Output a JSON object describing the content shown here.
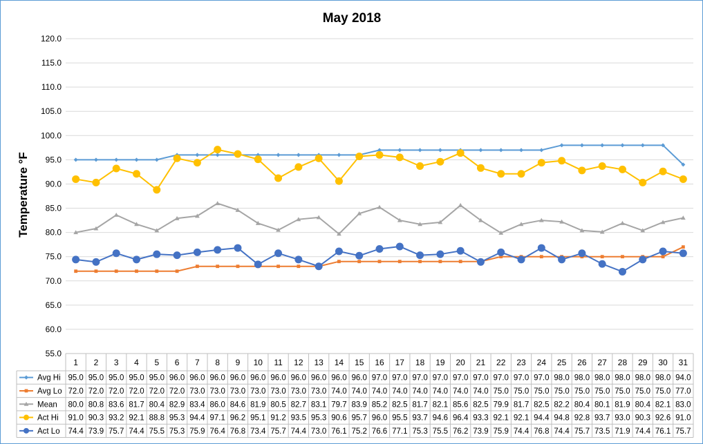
{
  "chart_data": {
    "type": "line",
    "title": "May 2018",
    "ylabel": "Temperature °F",
    "ylim": [
      55.0,
      120.0
    ],
    "ytick_step": 5,
    "grid": true,
    "legend_placement": "data table rows below the plot",
    "categories": [
      "1",
      "2",
      "3",
      "4",
      "5",
      "6",
      "7",
      "8",
      "9",
      "10",
      "11",
      "12",
      "13",
      "14",
      "15",
      "16",
      "17",
      "18",
      "19",
      "20",
      "21",
      "22",
      "23",
      "24",
      "25",
      "26",
      "27",
      "28",
      "29",
      "30",
      "31"
    ],
    "series": [
      {
        "name": "Avg Hi",
        "color": "#5b9bd5",
        "marker": "diamond",
        "values": [
          95.0,
          95.0,
          95.0,
          95.0,
          95.0,
          96.0,
          96.0,
          96.0,
          96.0,
          96.0,
          96.0,
          96.0,
          96.0,
          96.0,
          96.0,
          97.0,
          97.0,
          97.0,
          97.0,
          97.0,
          97.0,
          97.0,
          97.0,
          97.0,
          98.0,
          98.0,
          98.0,
          98.0,
          98.0,
          98.0,
          94.0
        ]
      },
      {
        "name": "Avg Lo",
        "color": "#ed7d31",
        "marker": "square",
        "values": [
          72.0,
          72.0,
          72.0,
          72.0,
          72.0,
          72.0,
          73.0,
          73.0,
          73.0,
          73.0,
          73.0,
          73.0,
          73.0,
          74.0,
          74.0,
          74.0,
          74.0,
          74.0,
          74.0,
          74.0,
          74.0,
          75.0,
          75.0,
          75.0,
          75.0,
          75.0,
          75.0,
          75.0,
          75.0,
          75.0,
          77.0
        ]
      },
      {
        "name": "Mean",
        "color": "#a5a5a5",
        "marker": "triangle",
        "values": [
          80.0,
          80.8,
          83.6,
          81.7,
          80.4,
          82.9,
          83.4,
          86.0,
          84.6,
          81.9,
          80.5,
          82.7,
          83.1,
          79.7,
          83.9,
          85.2,
          82.5,
          81.7,
          82.1,
          85.6,
          82.5,
          79.9,
          81.7,
          82.5,
          82.2,
          80.4,
          80.1,
          81.9,
          80.4,
          82.1,
          83.0
        ]
      },
      {
        "name": "Act Hi",
        "color": "#ffc000",
        "marker": "circle",
        "values": [
          91.0,
          90.3,
          93.2,
          92.1,
          88.8,
          95.3,
          94.4,
          97.1,
          96.2,
          95.1,
          91.2,
          93.5,
          95.3,
          90.6,
          95.7,
          96.0,
          95.5,
          93.7,
          94.6,
          96.4,
          93.3,
          92.1,
          92.1,
          94.4,
          94.8,
          92.8,
          93.7,
          93.0,
          90.3,
          92.6,
          91.0
        ]
      },
      {
        "name": "Act Lo",
        "color": "#4472c4",
        "marker": "circle",
        "values": [
          74.4,
          73.9,
          75.7,
          74.4,
          75.5,
          75.3,
          75.9,
          76.4,
          76.8,
          73.4,
          75.7,
          74.4,
          73.0,
          76.1,
          75.2,
          76.6,
          77.1,
          75.3,
          75.5,
          76.2,
          73.9,
          75.9,
          74.4,
          76.8,
          74.4,
          75.7,
          73.5,
          71.9,
          74.4,
          76.1,
          75.7
        ]
      }
    ]
  }
}
